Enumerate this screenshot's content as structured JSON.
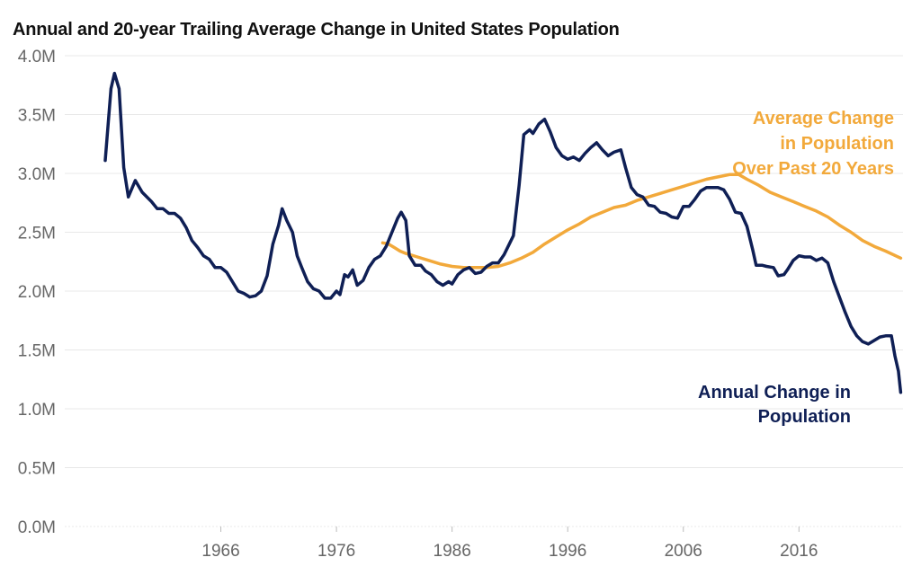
{
  "title": "Annual and 20-year Trailing Average Change in United States Population",
  "colors": {
    "annual": "#0f1f55",
    "average": "#f2a93b",
    "grid": "#e8e8e8",
    "axis_text": "#666666"
  },
  "chart_data": {
    "type": "line",
    "title": "Annual and 20-year Trailing Average Change in United States Population",
    "xlabel": "",
    "ylabel": "",
    "xlim": [
      1952.5,
      2025
    ],
    "ylim": [
      0,
      4.0
    ],
    "grid": true,
    "legend": "inline labels at line ends",
    "y_ticks": [
      {
        "value": 0,
        "label": "0.0M"
      },
      {
        "value": 0.5,
        "label": "0.5M"
      },
      {
        "value": 1.0,
        "label": "1.0M"
      },
      {
        "value": 1.5,
        "label": "1.5M"
      },
      {
        "value": 2.0,
        "label": "2.0M"
      },
      {
        "value": 2.5,
        "label": "2.5M"
      },
      {
        "value": 3.0,
        "label": "3.0M"
      },
      {
        "value": 3.5,
        "label": "3.5M"
      },
      {
        "value": 4.0,
        "label": "4.0M"
      }
    ],
    "x_ticks": [
      {
        "value": 1966,
        "label": "1966"
      },
      {
        "value": 1976,
        "label": "1976"
      },
      {
        "value": 1986,
        "label": "1986"
      },
      {
        "value": 1996,
        "label": "1996"
      },
      {
        "value": 2006,
        "label": "2006"
      },
      {
        "value": 2016,
        "label": "2016"
      }
    ],
    "series": [
      {
        "key": "annual",
        "label_lines": [
          "Annual Change in",
          "Population"
        ],
        "points": [
          [
            1956.0,
            3.11
          ],
          [
            1956.5,
            3.72
          ],
          [
            1956.8,
            3.85
          ],
          [
            1957.2,
            3.72
          ],
          [
            1957.6,
            3.05
          ],
          [
            1958.0,
            2.8
          ],
          [
            1958.6,
            2.94
          ],
          [
            1959.2,
            2.84
          ],
          [
            1960.0,
            2.76
          ],
          [
            1960.5,
            2.7
          ],
          [
            1961.0,
            2.7
          ],
          [
            1961.5,
            2.66
          ],
          [
            1962.0,
            2.66
          ],
          [
            1962.5,
            2.62
          ],
          [
            1963.0,
            2.54
          ],
          [
            1963.5,
            2.43
          ],
          [
            1964.0,
            2.37
          ],
          [
            1964.5,
            2.3
          ],
          [
            1965.0,
            2.27
          ],
          [
            1965.5,
            2.2
          ],
          [
            1966.0,
            2.2
          ],
          [
            1966.5,
            2.16
          ],
          [
            1967.0,
            2.08
          ],
          [
            1967.5,
            2.0
          ],
          [
            1968.0,
            1.98
          ],
          [
            1968.5,
            1.95
          ],
          [
            1969.0,
            1.96
          ],
          [
            1969.5,
            2.0
          ],
          [
            1970.0,
            2.13
          ],
          [
            1970.5,
            2.4
          ],
          [
            1971.0,
            2.56
          ],
          [
            1971.3,
            2.7
          ],
          [
            1971.7,
            2.6
          ],
          [
            1972.2,
            2.5
          ],
          [
            1972.6,
            2.3
          ],
          [
            1973.0,
            2.2
          ],
          [
            1973.5,
            2.08
          ],
          [
            1974.0,
            2.02
          ],
          [
            1974.5,
            2.0
          ],
          [
            1975.0,
            1.94
          ],
          [
            1975.5,
            1.94
          ],
          [
            1976.0,
            2.0
          ],
          [
            1976.3,
            1.97
          ],
          [
            1976.7,
            2.14
          ],
          [
            1977.0,
            2.12
          ],
          [
            1977.4,
            2.18
          ],
          [
            1977.8,
            2.05
          ],
          [
            1978.3,
            2.09
          ],
          [
            1978.8,
            2.2
          ],
          [
            1979.3,
            2.27
          ],
          [
            1979.8,
            2.3
          ],
          [
            1980.3,
            2.38
          ],
          [
            1980.8,
            2.5
          ],
          [
            1981.3,
            2.62
          ],
          [
            1981.6,
            2.67
          ],
          [
            1982.0,
            2.6
          ],
          [
            1982.3,
            2.3
          ],
          [
            1982.8,
            2.22
          ],
          [
            1983.3,
            2.22
          ],
          [
            1983.7,
            2.17
          ],
          [
            1984.2,
            2.14
          ],
          [
            1984.7,
            2.08
          ],
          [
            1985.2,
            2.05
          ],
          [
            1985.7,
            2.08
          ],
          [
            1986.0,
            2.06
          ],
          [
            1986.5,
            2.14
          ],
          [
            1987.0,
            2.18
          ],
          [
            1987.5,
            2.2
          ],
          [
            1988.0,
            2.15
          ],
          [
            1988.5,
            2.16
          ],
          [
            1989.0,
            2.21
          ],
          [
            1989.5,
            2.24
          ],
          [
            1990.0,
            2.24
          ],
          [
            1990.5,
            2.31
          ],
          [
            1991.0,
            2.41
          ],
          [
            1991.3,
            2.47
          ],
          [
            1991.8,
            2.9
          ],
          [
            1992.2,
            3.33
          ],
          [
            1992.7,
            3.37
          ],
          [
            1993.0,
            3.34
          ],
          [
            1993.5,
            3.42
          ],
          [
            1994.0,
            3.46
          ],
          [
            1994.5,
            3.35
          ],
          [
            1995.0,
            3.22
          ],
          [
            1995.5,
            3.15
          ],
          [
            1996.0,
            3.12
          ],
          [
            1996.5,
            3.14
          ],
          [
            1997.0,
            3.11
          ],
          [
            1997.5,
            3.17
          ],
          [
            1998.0,
            3.22
          ],
          [
            1998.5,
            3.26
          ],
          [
            1999.0,
            3.2
          ],
          [
            1999.5,
            3.15
          ],
          [
            2000.0,
            3.18
          ],
          [
            2000.6,
            3.2
          ],
          [
            2001.0,
            3.05
          ],
          [
            2001.5,
            2.88
          ],
          [
            2002.0,
            2.82
          ],
          [
            2002.5,
            2.8
          ],
          [
            2003.0,
            2.73
          ],
          [
            2003.5,
            2.72
          ],
          [
            2004.0,
            2.67
          ],
          [
            2004.5,
            2.66
          ],
          [
            2005.0,
            2.63
          ],
          [
            2005.5,
            2.62
          ],
          [
            2006.0,
            2.72
          ],
          [
            2006.5,
            2.72
          ],
          [
            2007.0,
            2.78
          ],
          [
            2007.5,
            2.85
          ],
          [
            2008.0,
            2.88
          ],
          [
            2008.5,
            2.88
          ],
          [
            2009.0,
            2.88
          ],
          [
            2009.5,
            2.86
          ],
          [
            2010.0,
            2.78
          ],
          [
            2010.5,
            2.67
          ],
          [
            2011.0,
            2.66
          ],
          [
            2011.5,
            2.55
          ],
          [
            2012.0,
            2.35
          ],
          [
            2012.3,
            2.22
          ],
          [
            2012.8,
            2.22
          ],
          [
            2013.2,
            2.21
          ],
          [
            2013.8,
            2.2
          ],
          [
            2014.2,
            2.13
          ],
          [
            2014.7,
            2.14
          ],
          [
            2015.0,
            2.18
          ],
          [
            2015.5,
            2.26
          ],
          [
            2016.0,
            2.3
          ],
          [
            2016.5,
            2.29
          ],
          [
            2017.0,
            2.29
          ],
          [
            2017.5,
            2.26
          ],
          [
            2018.0,
            2.28
          ],
          [
            2018.5,
            2.24
          ],
          [
            2019.0,
            2.08
          ],
          [
            2019.5,
            1.95
          ],
          [
            2020.0,
            1.82
          ],
          [
            2020.5,
            1.7
          ],
          [
            2021.0,
            1.62
          ],
          [
            2021.5,
            1.57
          ],
          [
            2022.0,
            1.55
          ],
          [
            2022.5,
            1.58
          ],
          [
            2023.0,
            1.61
          ],
          [
            2023.5,
            1.62
          ],
          [
            2024.0,
            1.62
          ],
          [
            2024.3,
            1.45
          ],
          [
            2024.6,
            1.32
          ],
          [
            2024.8,
            1.14
          ]
        ]
      },
      {
        "key": "average",
        "label_lines": [
          "Average Change",
          "in Population",
          "Over Past 20 Years"
        ],
        "points": [
          [
            1980.0,
            2.41
          ],
          [
            1980.5,
            2.4
          ],
          [
            1981.0,
            2.37
          ],
          [
            1981.5,
            2.34
          ],
          [
            1982.0,
            2.32
          ],
          [
            1983.0,
            2.29
          ],
          [
            1984.0,
            2.26
          ],
          [
            1985.0,
            2.23
          ],
          [
            1986.0,
            2.21
          ],
          [
            1987.0,
            2.2
          ],
          [
            1988.0,
            2.2
          ],
          [
            1989.0,
            2.2
          ],
          [
            1990.0,
            2.21
          ],
          [
            1991.0,
            2.24
          ],
          [
            1992.0,
            2.28
          ],
          [
            1993.0,
            2.33
          ],
          [
            1994.0,
            2.4
          ],
          [
            1995.0,
            2.46
          ],
          [
            1996.0,
            2.52
          ],
          [
            1997.0,
            2.57
          ],
          [
            1998.0,
            2.63
          ],
          [
            1999.0,
            2.67
          ],
          [
            2000.0,
            2.71
          ],
          [
            2001.0,
            2.73
          ],
          [
            2002.0,
            2.77
          ],
          [
            2003.0,
            2.8
          ],
          [
            2004.0,
            2.83
          ],
          [
            2005.0,
            2.86
          ],
          [
            2006.0,
            2.89
          ],
          [
            2007.0,
            2.92
          ],
          [
            2008.0,
            2.95
          ],
          [
            2009.0,
            2.97
          ],
          [
            2010.0,
            2.99
          ],
          [
            2010.8,
            2.99
          ],
          [
            2011.5,
            2.95
          ],
          [
            2012.5,
            2.9
          ],
          [
            2013.5,
            2.84
          ],
          [
            2014.5,
            2.8
          ],
          [
            2015.5,
            2.76
          ],
          [
            2016.5,
            2.72
          ],
          [
            2017.5,
            2.68
          ],
          [
            2018.5,
            2.63
          ],
          [
            2019.5,
            2.56
          ],
          [
            2020.5,
            2.5
          ],
          [
            2021.5,
            2.43
          ],
          [
            2022.5,
            2.38
          ],
          [
            2023.5,
            2.34
          ],
          [
            2024.8,
            2.28
          ]
        ]
      }
    ]
  }
}
